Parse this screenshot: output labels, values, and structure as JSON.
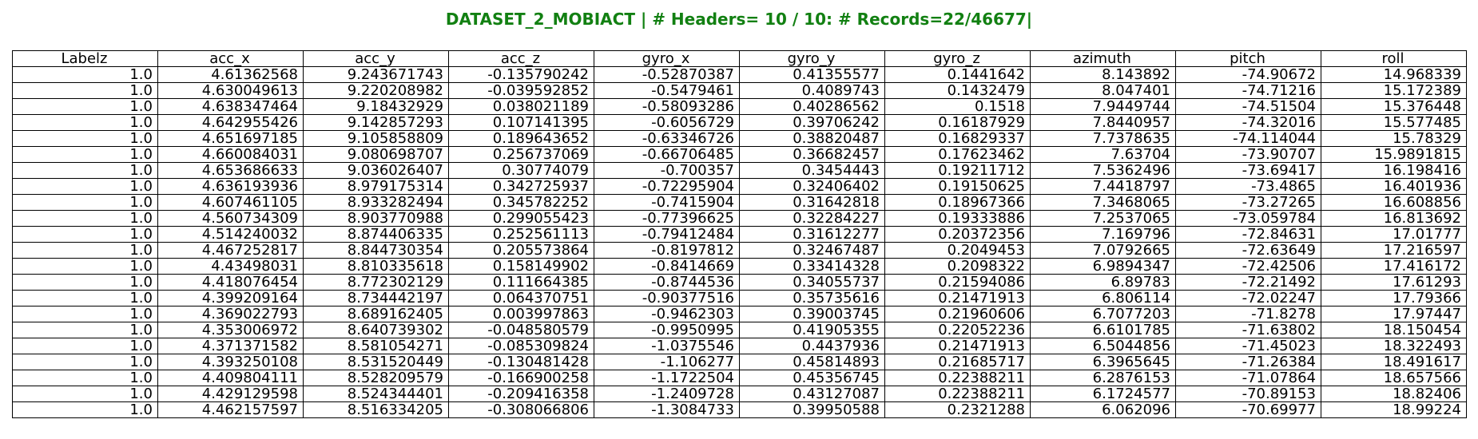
{
  "title": "DATASET_2_MOBIACT | # Headers= 10 / 10: # Records=22/46677|",
  "colors": {
    "title": "#128012",
    "text": "#000000",
    "grid": "#000000",
    "background": "#ffffff"
  },
  "chart_data": {
    "type": "table",
    "title": "DATASET_2_MOBIACT | # Headers= 10 / 10: # Records=22/46677|",
    "columns": [
      "Labelz",
      "acc_x",
      "acc_y",
      "acc_z",
      "gyro_x",
      "gyro_y",
      "gyro_z",
      "azimuth",
      "pitch",
      "roll"
    ],
    "rows": [
      [
        "1.0",
        "4.61362568",
        "9.243671743",
        "-0.135790242",
        "-0.52870387",
        "0.41355577",
        "0.1441642",
        "8.143892",
        "-74.90672",
        "14.968339"
      ],
      [
        "1.0",
        "4.630049613",
        "9.220208982",
        "-0.039592852",
        "-0.5479461",
        "0.4089743",
        "0.1432479",
        "8.047401",
        "-74.71216",
        "15.172389"
      ],
      [
        "1.0",
        "4.638347464",
        "9.18432929",
        "0.038021189",
        "-0.58093286",
        "0.40286562",
        "0.1518",
        "7.9449744",
        "-74.51504",
        "15.376448"
      ],
      [
        "1.0",
        "4.642955426",
        "9.142857293",
        "0.107141395",
        "-0.6056729",
        "0.39706242",
        "0.16187929",
        "7.8440957",
        "-74.32016",
        "15.577485"
      ],
      [
        "1.0",
        "4.651697185",
        "9.105858809",
        "0.189643652",
        "-0.63346726",
        "0.38820487",
        "0.16829337",
        "7.7378635",
        "-74.114044",
        "15.78329"
      ],
      [
        "1.0",
        "4.660084031",
        "9.080698707",
        "0.256737069",
        "-0.66706485",
        "0.36682457",
        "0.17623462",
        "7.63704",
        "-73.90707",
        "15.9891815"
      ],
      [
        "1.0",
        "4.653686633",
        "9.036026407",
        "0.30774079",
        "-0.700357",
        "0.3454443",
        "0.19211712",
        "7.5362496",
        "-73.69417",
        "16.198416"
      ],
      [
        "1.0",
        "4.636193936",
        "8.979175314",
        "0.342725937",
        "-0.72295904",
        "0.32406402",
        "0.19150625",
        "7.4418797",
        "-73.4865",
        "16.401936"
      ],
      [
        "1.0",
        "4.607461105",
        "8.933282494",
        "0.345782252",
        "-0.7415904",
        "0.31642818",
        "0.18967366",
        "7.3468065",
        "-73.27265",
        "16.608856"
      ],
      [
        "1.0",
        "4.560734309",
        "8.903770988",
        "0.299055423",
        "-0.77396625",
        "0.32284227",
        "0.19333886",
        "7.2537065",
        "-73.059784",
        "16.813692"
      ],
      [
        "1.0",
        "4.514240032",
        "8.874406335",
        "0.252561113",
        "-0.79412484",
        "0.31612277",
        "0.20372356",
        "7.169796",
        "-72.84631",
        "17.01777"
      ],
      [
        "1.0",
        "4.467252817",
        "8.844730354",
        "0.205573864",
        "-0.8197812",
        "0.32467487",
        "0.2049453",
        "7.0792665",
        "-72.63649",
        "17.216597"
      ],
      [
        "1.0",
        "4.43498031",
        "8.810335618",
        "0.158149902",
        "-0.8414669",
        "0.33414328",
        "0.2098322",
        "6.9894347",
        "-72.42506",
        "17.416172"
      ],
      [
        "1.0",
        "4.418076454",
        "8.772302129",
        "0.111664385",
        "-0.8744536",
        "0.34055737",
        "0.21594086",
        "6.89783",
        "-72.21492",
        "17.61293"
      ],
      [
        "1.0",
        "4.399209164",
        "8.734442197",
        "0.064370751",
        "-0.90377516",
        "0.35735616",
        "0.21471913",
        "6.806114",
        "-72.02247",
        "17.79366"
      ],
      [
        "1.0",
        "4.369022793",
        "8.689162405",
        "0.003997863",
        "-0.9462303",
        "0.39003745",
        "0.21960606",
        "6.7077203",
        "-71.8278",
        "17.97447"
      ],
      [
        "1.0",
        "4.353006972",
        "8.640739302",
        "-0.048580579",
        "-0.9950995",
        "0.41905355",
        "0.22052236",
        "6.6101785",
        "-71.63802",
        "18.150454"
      ],
      [
        "1.0",
        "4.371371582",
        "8.581054271",
        "-0.085309824",
        "-1.0375546",
        "0.4437936",
        "0.21471913",
        "6.5044856",
        "-71.45023",
        "18.322493"
      ],
      [
        "1.0",
        "4.393250108",
        "8.531520449",
        "-0.130481428",
        "-1.106277",
        "0.45814893",
        "0.21685717",
        "6.3965645",
        "-71.26384",
        "18.491617"
      ],
      [
        "1.0",
        "4.409804111",
        "8.528209579",
        "-0.166900258",
        "-1.1722504",
        "0.45356745",
        "0.22388211",
        "6.2876153",
        "-71.07864",
        "18.657566"
      ],
      [
        "1.0",
        "4.429129598",
        "8.524344401",
        "-0.209416358",
        "-1.2409728",
        "0.43127087",
        "0.22388211",
        "6.1724577",
        "-70.89153",
        "18.82406"
      ],
      [
        "1.0",
        "4.462157597",
        "8.516334205",
        "-0.308066806",
        "-1.3084733",
        "0.39950588",
        "0.2321288",
        "6.062096",
        "-70.69977",
        "18.99224"
      ]
    ]
  }
}
